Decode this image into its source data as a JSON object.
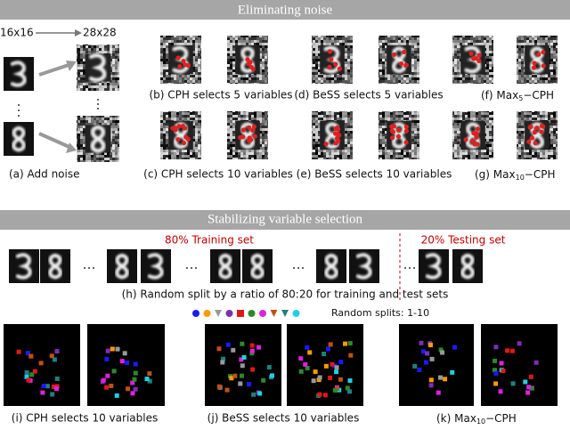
{
  "top": {
    "title": "Eliminating noise",
    "size_small": "16x16",
    "size_large": "28x28",
    "captions": {
      "a": "(a) Add noise",
      "b": "(b) CPH selects 5 variables",
      "c": "(c) CPH selects 10 variables",
      "d": "(d) BeSS selects 5 variables",
      "e": "(e) BeSS selects 10 variables",
      "f": {
        "prefix": "(f) Max",
        "sub": "5",
        "suffix": "−CPH"
      },
      "g": {
        "prefix": "(g) Max",
        "sub": "10",
        "suffix": "−CPH"
      }
    }
  },
  "bottom": {
    "title": "Stabilizing variable selection",
    "train": "80% Training set",
    "test": "20% Testing set",
    "caption_h": "(h) Random split by a ratio of 80:20 for training and test sets",
    "legend": "Random splits: 1-10",
    "captions": {
      "i": "(i) CPH selects 10 variables",
      "j": "(j) BeSS selects 10 variables",
      "k": {
        "prefix": "(k) Max",
        "sub": "10",
        "suffix": "−CPH"
      }
    }
  }
}
